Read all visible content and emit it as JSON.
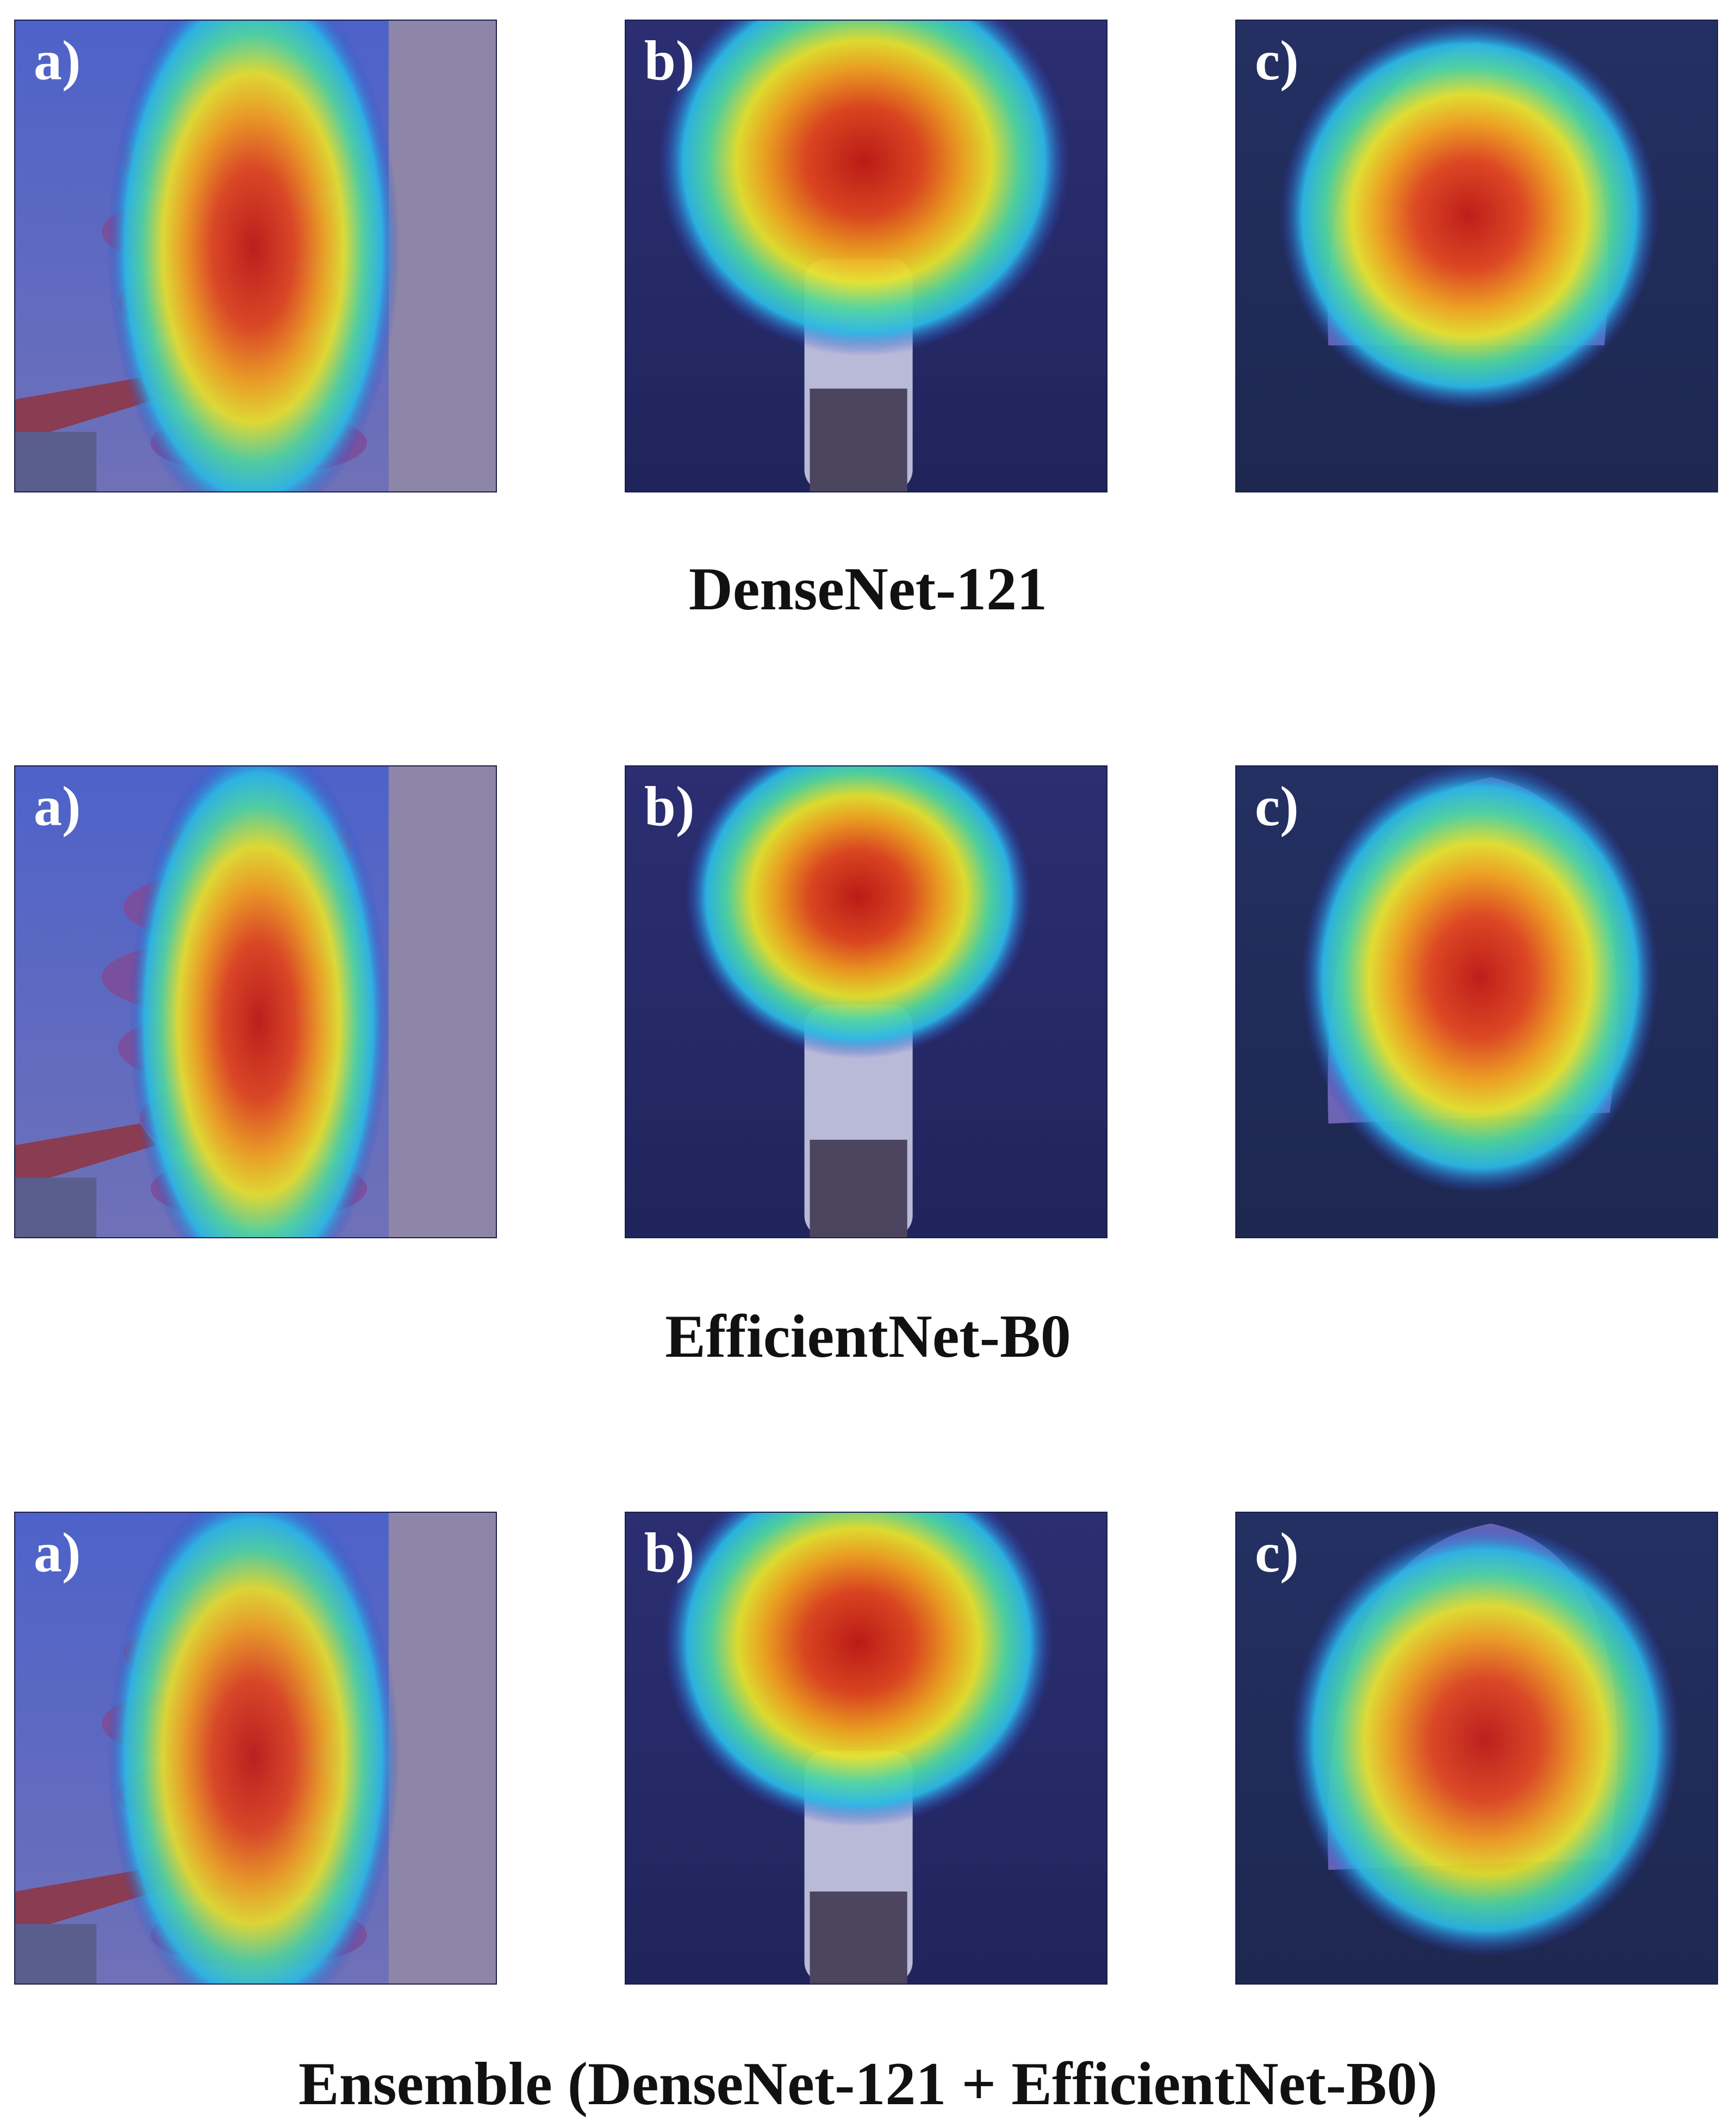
{
  "panel_labels": {
    "a": "a)",
    "b": "b)",
    "c": "c)"
  },
  "rows": [
    {
      "caption": "DenseNet-121"
    },
    {
      "caption": "EfficientNet-B0"
    },
    {
      "caption": "Ensemble (DenseNet-121 + EfficientNet-B0)"
    }
  ],
  "colors": {
    "heat_hot": "#d2281a",
    "heat_warm": "#f4a21c",
    "heat_mid": "#e7e12a",
    "heat_cool": "#2fd0c8",
    "overlay_blue": "#2c3496"
  }
}
